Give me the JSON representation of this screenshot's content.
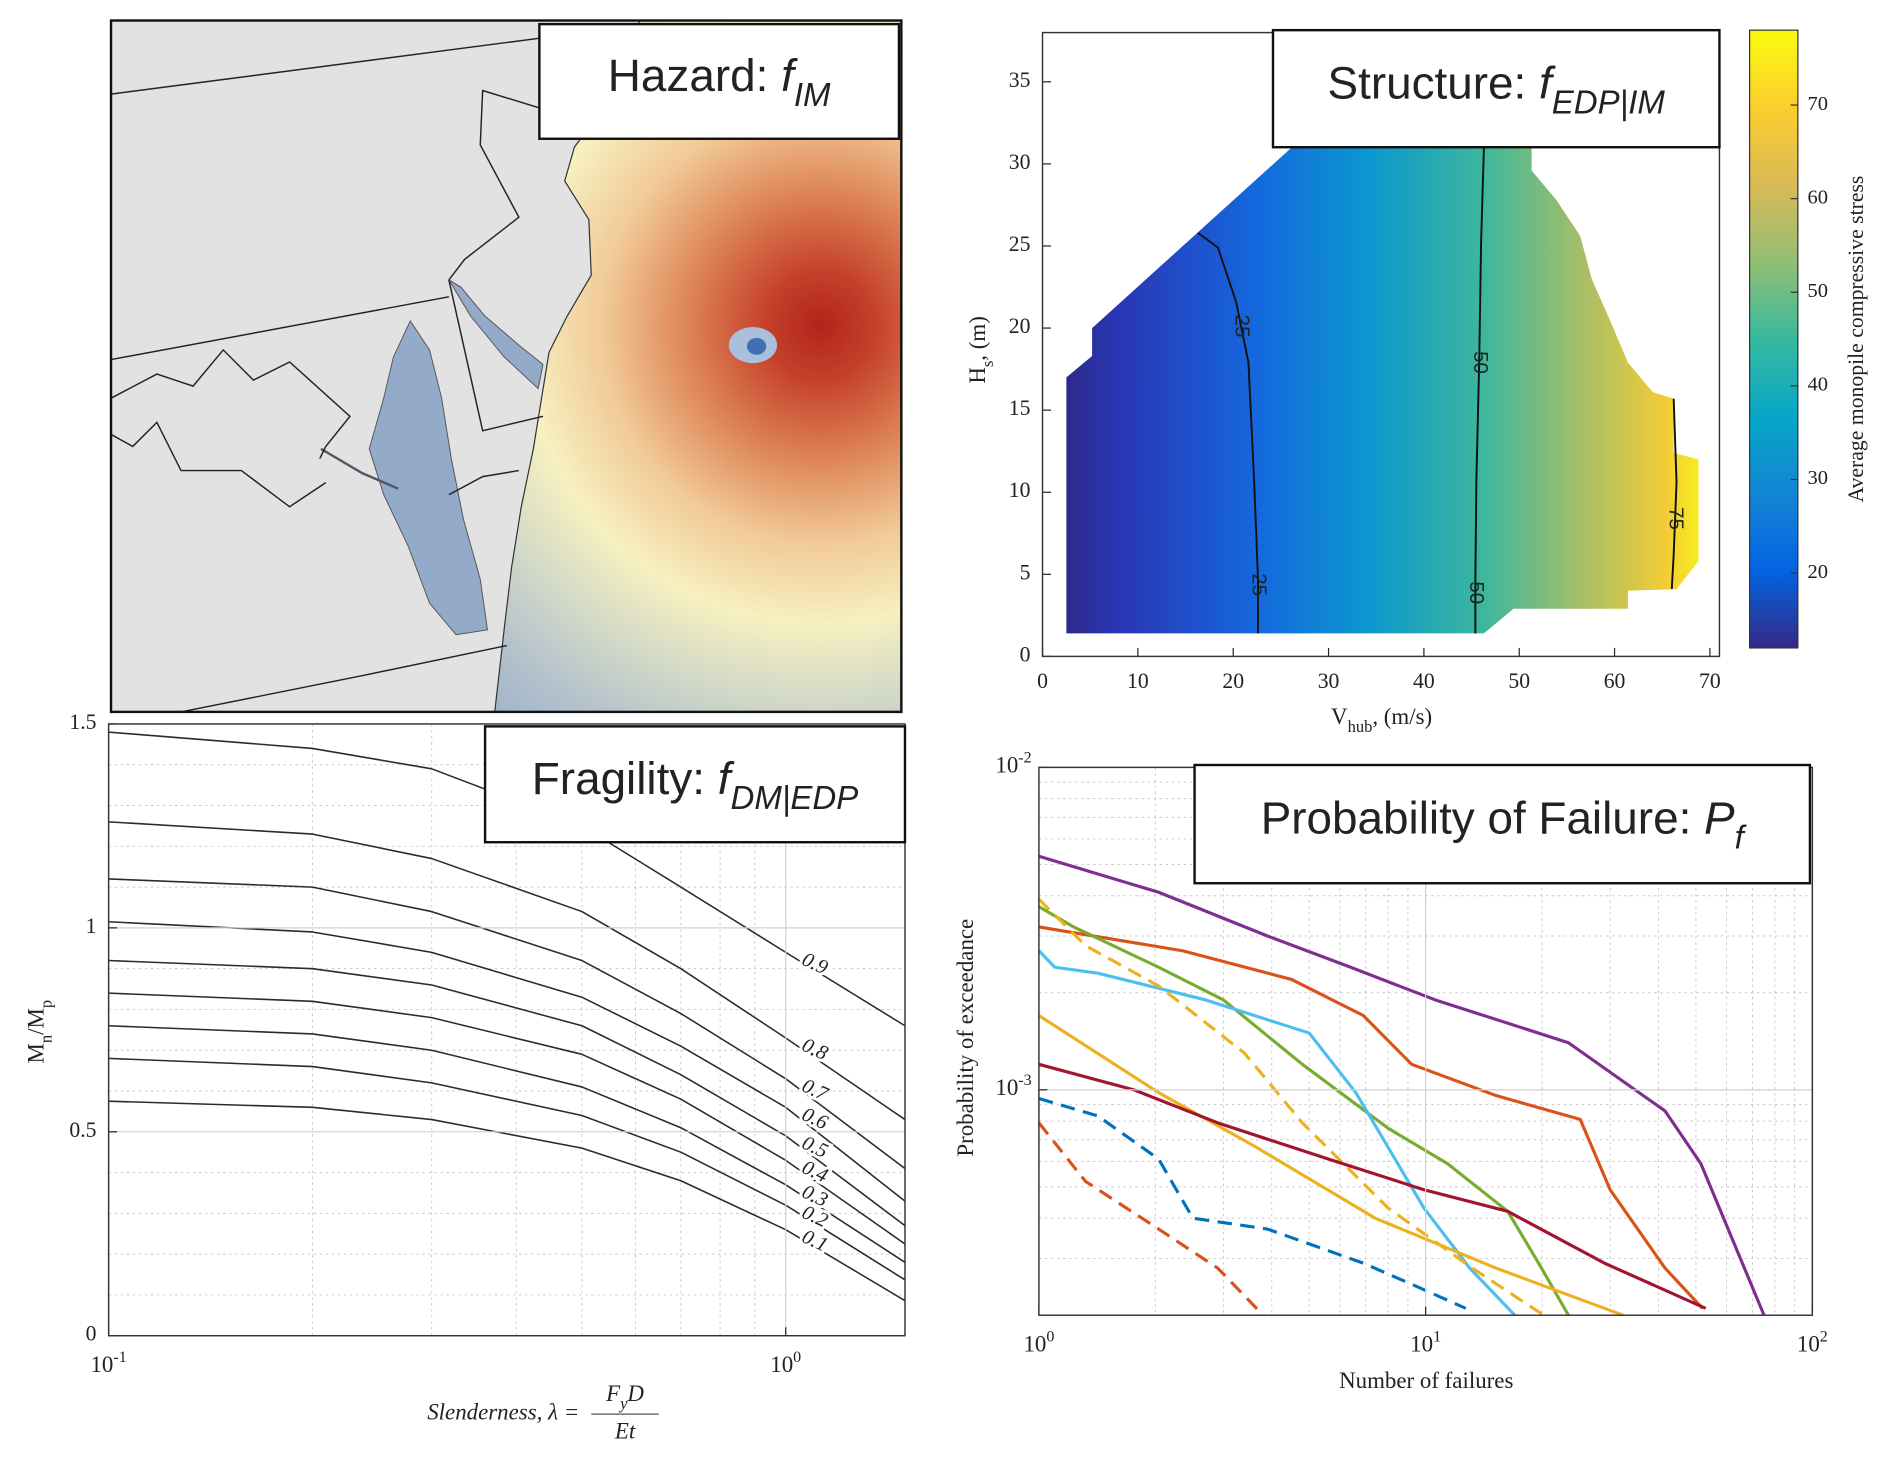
{
  "chart_data": [
    {
      "type": "map",
      "title": {
        "text": "Hazard: ",
        "symbol": "f",
        "subscript": "IM"
      }
    },
    {
      "type": "contour",
      "title": {
        "text": "Structure: ",
        "symbol": "f",
        "subscript": "EDP|IM"
      },
      "xlabel": {
        "text": "V",
        "subscript": "hub",
        "rest": ", (m/s)"
      },
      "ylabel": {
        "text": "H",
        "subscript": "s",
        "rest": ", (m)"
      },
      "xlim": [
        0,
        71
      ],
      "xticks": [
        0,
        10,
        20,
        30,
        40,
        50,
        60,
        70
      ],
      "ylim": [
        0,
        38
      ],
      "yticks": [
        0,
        5,
        10,
        15,
        20,
        25,
        30,
        35
      ],
      "grid": false,
      "region": {
        "x": [
          2.5,
          2.5,
          5.2,
          5.2,
          26.7,
          51.3,
          51.3,
          53.9,
          56.4,
          57.6,
          59.5,
          61.4,
          64.0,
          66.2,
          66.2,
          68.8,
          68.8,
          66.5,
          61.4,
          61.4,
          49.4,
          46.3
        ],
        "y": [
          1.4,
          17.0,
          18.3,
          20.0,
          31.3,
          31.3,
          29.6,
          27.8,
          25.6,
          23.0,
          20.5,
          17.9,
          16.1,
          15.7,
          12.4,
          12.0,
          5.8,
          4.1,
          4.0,
          2.9,
          2.9,
          1.4
        ]
      },
      "contours": [
        {
          "level": 25,
          "x": [
            16.3,
            18.4,
            20.3,
            21.6,
            22.2,
            22.6,
            22.6
          ],
          "y": [
            25.8,
            24.9,
            21.6,
            17.9,
            10.6,
            4.7,
            1.4
          ]
        },
        {
          "level": 50,
          "x": [
            46.3,
            46.0,
            45.8,
            45.5,
            45.4,
            45.4
          ],
          "y": [
            31.1,
            25.2,
            17.9,
            10.6,
            4.7,
            1.4
          ]
        },
        {
          "level": 75,
          "x": [
            66.2,
            66.5,
            66.2,
            66.0
          ],
          "y": [
            15.7,
            10.6,
            6.2,
            4.1
          ]
        }
      ],
      "colorbar": {
        "label": "Average monopile compressive stress",
        "lim": [
          12,
          78
        ],
        "ticks": [
          20,
          30,
          40,
          50,
          60,
          70
        ]
      }
    },
    {
      "type": "line",
      "title": {
        "text": "Fragility: ",
        "symbol": "f",
        "subscript": "DM|EDP"
      },
      "xlabel": {
        "text": "Slenderness, λ =",
        "numerator": "F",
        "numerator_sub": "y",
        "numerator_rest": "D",
        "denominator": "Et"
      },
      "ylabel": {
        "text": "M",
        "subscript": "n",
        "rest": "/M",
        "subscript2": "p"
      },
      "xlog": true,
      "xlim": [
        0.1,
        1.5
      ],
      "xticks": [
        {
          "value": 0.1,
          "label": "10",
          "exponent": "-1"
        },
        {
          "value": 1,
          "label": "10",
          "exponent": "0"
        }
      ],
      "xminor": [
        0.2,
        0.3,
        0.4,
        0.5,
        0.6,
        0.7,
        0.8,
        0.9
      ],
      "ylim": [
        0,
        1.5
      ],
      "yticks": [
        0,
        0.5,
        1,
        1.5
      ],
      "yminor": [
        0.1,
        0.2,
        0.3,
        0.4,
        0.6,
        0.7,
        0.8,
        0.9,
        1.1,
        1.2,
        1.3,
        1.4
      ],
      "grid": true,
      "x": [
        0.1,
        0.2,
        0.3,
        0.5,
        0.7,
        1,
        1.5
      ],
      "series": [
        {
          "name": "0.9",
          "color": "#2b2b2b",
          "values": [
            1.48,
            1.44,
            1.39,
            1.25,
            1.1,
            0.94,
            0.76
          ]
        },
        {
          "name": "0.8",
          "color": "#2b2b2b",
          "values": [
            1.26,
            1.23,
            1.17,
            1.04,
            0.9,
            0.73,
            0.53
          ]
        },
        {
          "name": "0.7",
          "color": "#2b2b2b",
          "values": [
            1.12,
            1.1,
            1.04,
            0.92,
            0.79,
            0.63,
            0.41
          ]
        },
        {
          "name": "0.6",
          "color": "#2b2b2b",
          "values": [
            1.015,
            0.99,
            0.94,
            0.83,
            0.71,
            0.56,
            0.33
          ]
        },
        {
          "name": "0.5",
          "color": "#2b2b2b",
          "values": [
            0.92,
            0.9,
            0.86,
            0.76,
            0.64,
            0.49,
            0.27
          ]
        },
        {
          "name": "0.4",
          "color": "#2b2b2b",
          "values": [
            0.84,
            0.82,
            0.78,
            0.69,
            0.58,
            0.43,
            0.225
          ]
        },
        {
          "name": "0.3",
          "color": "#2b2b2b",
          "values": [
            0.76,
            0.74,
            0.7,
            0.61,
            0.51,
            0.37,
            0.18
          ]
        },
        {
          "name": "0.2",
          "color": "#2b2b2b",
          "values": [
            0.68,
            0.66,
            0.62,
            0.54,
            0.45,
            0.32,
            0.137
          ]
        },
        {
          "name": "0.1",
          "color": "#2b2b2b",
          "values": [
            0.575,
            0.56,
            0.53,
            0.46,
            0.38,
            0.26,
            0.086
          ]
        }
      ]
    },
    {
      "type": "line",
      "title": {
        "text": "Probability of Failure: ",
        "symbol": "P",
        "subscript": "f"
      },
      "xlabel": "Number of failures",
      "ylabel": "Probability of exceedance",
      "xlog": true,
      "ylog": true,
      "xlim": [
        1,
        100
      ],
      "xticks": [
        {
          "value": 1,
          "label": "10",
          "exponent": "0"
        },
        {
          "value": 10,
          "label": "10",
          "exponent": "1"
        },
        {
          "value": 100,
          "label": "10",
          "exponent": "2"
        }
      ],
      "xminor": [
        2,
        3,
        4,
        5,
        6,
        7,
        8,
        9,
        20,
        30,
        40,
        50,
        60,
        70,
        80,
        90
      ],
      "ylim": [
        0.0002,
        0.01
      ],
      "yticks": [
        {
          "value": 0.001,
          "label": "10",
          "exponent": "-3"
        },
        {
          "value": 0.01,
          "label": "10",
          "exponent": "-2"
        }
      ],
      "yminor": [
        0.0003,
        0.0004,
        0.0005,
        0.0006,
        0.0007,
        0.0008,
        0.0009,
        0.002,
        0.003,
        0.004,
        0.005,
        0.006,
        0.007,
        0.008,
        0.009
      ],
      "grid": true,
      "series": [
        {
          "color": "#7e2f8e",
          "x": [
            1,
            2.04,
            3.9,
            6.4,
            10.6,
            23.4,
            41.6,
            51.5,
            75
          ],
          "values": [
            0.0053,
            0.0041,
            0.003,
            0.0024,
            0.0019,
            0.0014,
            0.00086,
            0.00059,
            0.0002
          ]
        },
        {
          "color": "#d95319",
          "x": [
            1,
            2.35,
            4.5,
            6.9,
            9.2,
            15.2,
            25.1,
            30,
            41.6,
            52
          ],
          "values": [
            0.0032,
            0.0027,
            0.0022,
            0.0017,
            0.0012,
            0.00096,
            0.00081,
            0.00049,
            0.00028,
            0.00021
          ]
        },
        {
          "color": "#77ac30",
          "x": [
            1,
            1.23,
            2.04,
            3,
            4.8,
            8,
            11.4,
            16.3,
            19.6,
            23.4
          ],
          "values": [
            0.0037,
            0.0032,
            0.0024,
            0.0019,
            0.0012,
            0.00076,
            0.00059,
            0.00042,
            0.00029,
            0.0002
          ]
        },
        {
          "color": "#4dbeee",
          "x": [
            1,
            1.1,
            1.42,
            2.7,
            5,
            6.6,
            9.9,
            13,
            17
          ],
          "values": [
            0.0027,
            0.0024,
            0.0023,
            0.0019,
            0.0015,
            0.00098,
            0.00043,
            0.00028,
            0.0002
          ]
        },
        {
          "color": "#edb120",
          "x": [
            1,
            2.04,
            3.6,
            7.4,
            15.2,
            32.4
          ],
          "values": [
            0.0017,
            0.00098,
            0.00067,
            0.0004,
            0.00028,
            0.0002
          ]
        },
        {
          "color": "#edb120",
          "dash": true,
          "x": [
            1,
            1.32,
            2.04,
            3.4,
            4.8,
            8,
            13.2,
            20.2
          ],
          "values": [
            0.0039,
            0.0028,
            0.0021,
            0.0013,
            0.00079,
            0.00043,
            0.00028,
            0.0002
          ]
        },
        {
          "color": "#a2142f",
          "x": [
            1,
            1.76,
            2.9,
            5.6,
            9.9,
            16.3,
            29,
            53
          ],
          "values": [
            0.0012,
            0.001,
            0.00079,
            0.00061,
            0.00049,
            0.00042,
            0.00029,
            0.00021
          ]
        },
        {
          "color": "#0072bd",
          "dash": true,
          "x": [
            1,
            1.42,
            2.04,
            2.5,
            3.9,
            6.9,
            9.9,
            12.7
          ],
          "values": [
            0.00094,
            0.00083,
            0.00061,
            0.0004,
            0.00037,
            0.00029,
            0.00024,
            0.00021
          ]
        },
        {
          "color": "#d95319",
          "dash": true,
          "x": [
            1,
            1.32,
            2.04,
            2.9,
            3.8
          ],
          "values": [
            0.00079,
            0.00052,
            0.00037,
            0.00028,
            0.0002
          ]
        }
      ]
    }
  ]
}
